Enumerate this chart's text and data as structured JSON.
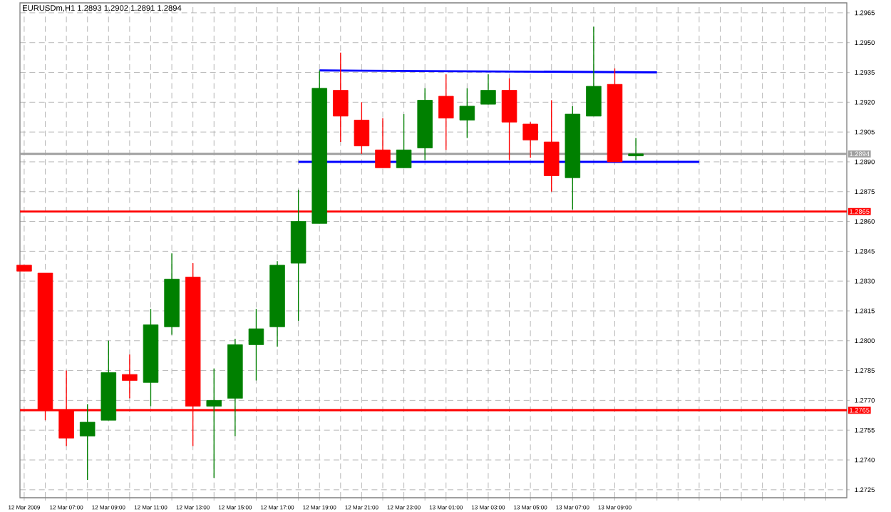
{
  "chart_data": {
    "type": "candlestick",
    "title": "EURUSDm,H1 1.2893 1.2902 1.2891 1.2894",
    "x": [
      "2009-03-12T05:00",
      "2009-03-12T06:00",
      "2009-03-12T07:00",
      "2009-03-12T08:00",
      "2009-03-12T09:00",
      "2009-03-12T10:00",
      "2009-03-12T11:00",
      "2009-03-12T12:00",
      "2009-03-12T13:00",
      "2009-03-12T14:00",
      "2009-03-12T15:00",
      "2009-03-12T16:00",
      "2009-03-12T17:00",
      "2009-03-12T18:00",
      "2009-03-12T19:00",
      "2009-03-12T20:00",
      "2009-03-12T21:00",
      "2009-03-12T22:00",
      "2009-03-12T23:00",
      "2009-03-13T00:00",
      "2009-03-13T01:00",
      "2009-03-13T02:00",
      "2009-03-13T03:00",
      "2009-03-13T04:00",
      "2009-03-13T05:00",
      "2009-03-13T06:00",
      "2009-03-13T07:00",
      "2009-03-13T08:00",
      "2009-03-13T09:00",
      "2009-03-13T10:00"
    ],
    "ohlc": [
      [
        1.2838,
        1.2838,
        1.2835,
        1.2835
      ],
      [
        1.2834,
        1.2834,
        1.276,
        1.2765
      ],
      [
        1.2765,
        1.2785,
        1.2747,
        1.2751
      ],
      [
        1.2752,
        1.2768,
        1.273,
        1.2759
      ],
      [
        1.276,
        1.28,
        1.276,
        1.2784
      ],
      [
        1.2783,
        1.2793,
        1.2771,
        1.278
      ],
      [
        1.2779,
        1.2816,
        1.2767,
        1.2808
      ],
      [
        1.2807,
        1.2844,
        1.2803,
        1.2831
      ],
      [
        1.2832,
        1.2839,
        1.2747,
        1.2767
      ],
      [
        1.2767,
        1.2786,
        1.2731,
        1.277
      ],
      [
        1.2771,
        1.2801,
        1.2752,
        1.2798
      ],
      [
        1.2798,
        1.2816,
        1.278,
        1.2806
      ],
      [
        1.2807,
        1.284,
        1.2797,
        1.2838
      ],
      [
        1.2839,
        1.2876,
        1.281,
        1.286
      ],
      [
        1.2859,
        1.2936,
        1.2859,
        1.2927
      ],
      [
        1.2926,
        1.2945,
        1.29,
        1.2913
      ],
      [
        1.2911,
        1.292,
        1.2894,
        1.2898
      ],
      [
        1.2896,
        1.2912,
        1.2887,
        1.2887
      ],
      [
        1.2887,
        1.2914,
        1.2887,
        1.2896
      ],
      [
        1.2897,
        1.2927,
        1.2891,
        1.2921
      ],
      [
        1.2923,
        1.2934,
        1.2896,
        1.2912
      ],
      [
        1.2911,
        1.2927,
        1.2902,
        1.2918
      ],
      [
        1.2919,
        1.2934,
        1.2919,
        1.2926
      ],
      [
        1.2926,
        1.2932,
        1.2891,
        1.291
      ],
      [
        1.2909,
        1.291,
        1.2892,
        1.2901
      ],
      [
        1.29,
        1.2921,
        1.2875,
        1.2883
      ],
      [
        1.2882,
        1.2918,
        1.2866,
        1.2914
      ],
      [
        1.2913,
        1.2958,
        1.2913,
        1.2928
      ],
      [
        1.2929,
        1.2937,
        1.289,
        1.289
      ],
      [
        1.2893,
        1.2902,
        1.2891,
        1.2894
      ]
    ],
    "colors": [
      "#ff0000",
      "#ff0000",
      "#ff0000",
      "#008000",
      "#008000",
      "#ff0000",
      "#008000",
      "#008000",
      "#ff0000",
      "#008000",
      "#008000",
      "#008000",
      "#008000",
      "#008000",
      "#008000",
      "#ff0000",
      "#ff0000",
      "#ff0000",
      "#008000",
      "#008000",
      "#ff0000",
      "#008000",
      "#008000",
      "#ff0000",
      "#ff0000",
      "#ff0000",
      "#008000",
      "#008000",
      "#ff0000",
      "#008000"
    ],
    "series": [
      {
        "type": "line",
        "color": "#0000ff",
        "x": [
          "2009-03-12T19:00",
          "2009-03-13T11:00"
        ],
        "values": [
          1.2936,
          1.2935
        ]
      },
      {
        "type": "line",
        "color": "#0000ff",
        "x": [
          "2009-03-12T18:00",
          "2009-03-13T13:00"
        ],
        "values": [
          1.289,
          1.289
        ]
      }
    ],
    "ref_lines": [
      {
        "axis": "y",
        "value": 1.2865,
        "label": "1.2865",
        "color": "#ff0000"
      },
      {
        "axis": "y",
        "value": 1.2765,
        "label": "1.2765",
        "color": "#ff0000"
      },
      {
        "axis": "y",
        "value": 1.2894,
        "label": "1.2894",
        "color": "#a0a0a0"
      }
    ],
    "xlim": [
      "2009-03-12T04:48",
      "2009-03-13T20:00"
    ],
    "xticks": [
      {
        "value": "2009-03-12T05:00",
        "label": "12 Mar 2009"
      },
      {
        "value": "2009-03-12T06:00",
        "label": null
      },
      {
        "value": "2009-03-12T07:00",
        "label": "12 Mar 07:00"
      },
      {
        "value": "2009-03-12T08:00",
        "label": null
      },
      {
        "value": "2009-03-12T09:00",
        "label": "12 Mar 09:00"
      },
      {
        "value": "2009-03-12T10:00",
        "label": null
      },
      {
        "value": "2009-03-12T11:00",
        "label": "12 Mar 11:00"
      },
      {
        "value": "2009-03-12T12:00",
        "label": null
      },
      {
        "value": "2009-03-12T13:00",
        "label": "12 Mar 13:00"
      },
      {
        "value": "2009-03-12T14:00",
        "label": null
      },
      {
        "value": "2009-03-12T15:00",
        "label": "12 Mar 15:00"
      },
      {
        "value": "2009-03-12T16:00",
        "label": null
      },
      {
        "value": "2009-03-12T17:00",
        "label": "12 Mar 17:00"
      },
      {
        "value": "2009-03-12T18:00",
        "label": null
      },
      {
        "value": "2009-03-12T19:00",
        "label": "12 Mar 19:00"
      },
      {
        "value": "2009-03-12T20:00",
        "label": null
      },
      {
        "value": "2009-03-12T21:00",
        "label": "12 Mar 21:00"
      },
      {
        "value": "2009-03-12T22:00",
        "label": null
      },
      {
        "value": "2009-03-12T23:00",
        "label": "12 Mar 23:00"
      },
      {
        "value": "2009-03-13T00:00",
        "label": null
      },
      {
        "value": "2009-03-13T01:00",
        "label": "13 Mar 01:00"
      },
      {
        "value": "2009-03-13T02:00",
        "label": null
      },
      {
        "value": "2009-03-13T03:00",
        "label": "13 Mar 03:00"
      },
      {
        "value": "2009-03-13T04:00",
        "label": null
      },
      {
        "value": "2009-03-13T05:00",
        "label": "13 Mar 05:00"
      },
      {
        "value": "2009-03-13T06:00",
        "label": null
      },
      {
        "value": "2009-03-13T07:00",
        "label": "13 Mar 07:00"
      },
      {
        "value": "2009-03-13T08:00",
        "label": null
      },
      {
        "value": "2009-03-13T09:00",
        "label": "13 Mar 09:00"
      },
      {
        "value": "2009-03-13T10:00",
        "label": null
      },
      {
        "value": "2009-03-13T11:00",
        "label": null
      },
      {
        "value": "2009-03-13T12:00",
        "label": null
      },
      {
        "value": "2009-03-13T13:00",
        "label": null
      },
      {
        "value": "2009-03-13T14:00",
        "label": null
      },
      {
        "value": "2009-03-13T15:00",
        "label": null
      },
      {
        "value": "2009-03-13T16:00",
        "label": null
      },
      {
        "value": "2009-03-13T17:00",
        "label": null
      },
      {
        "value": "2009-03-13T18:00",
        "label": null
      },
      {
        "value": "2009-03-13T19:00",
        "label": null
      }
    ],
    "ylim": [
      1.2721,
      1.297
    ],
    "yticks": [
      {
        "value": 1.2725,
        "label": "1.2725"
      },
      {
        "value": 1.274,
        "label": "1.2740"
      },
      {
        "value": 1.2755,
        "label": "1.2755"
      },
      {
        "value": 1.277,
        "label": "1.2770"
      },
      {
        "value": 1.2785,
        "label": "1.2785"
      },
      {
        "value": 1.28,
        "label": "1.2800"
      },
      {
        "value": 1.2815,
        "label": "1.2815"
      },
      {
        "value": 1.283,
        "label": "1.2830"
      },
      {
        "value": 1.2845,
        "label": "1.2845"
      },
      {
        "value": 1.286,
        "label": "1.2860"
      },
      {
        "value": 1.2875,
        "label": "1.2875"
      },
      {
        "value": 1.289,
        "label": "1.2890"
      },
      {
        "value": 1.2905,
        "label": "1.2905"
      },
      {
        "value": 1.292,
        "label": "1.2920"
      },
      {
        "value": 1.2935,
        "label": "1.2935"
      },
      {
        "value": 1.295,
        "label": "1.2950"
      },
      {
        "value": 1.2965,
        "label": "1.2965"
      }
    ],
    "grid": true
  }
}
